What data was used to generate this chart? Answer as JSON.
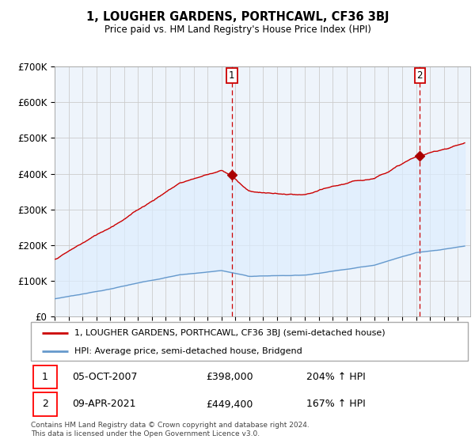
{
  "title": "1, LOUGHER GARDENS, PORTHCAWL, CF36 3BJ",
  "subtitle": "Price paid vs. HM Land Registry's House Price Index (HPI)",
  "legend_line1": "1, LOUGHER GARDENS, PORTHCAWL, CF36 3BJ (semi-detached house)",
  "legend_line2": "HPI: Average price, semi-detached house, Bridgend",
  "sale1_date": "05-OCT-2007",
  "sale1_price": "£398,000",
  "sale1_hpi": "204% ↑ HPI",
  "sale1_year": 2007.75,
  "sale1_value": 398000,
  "sale2_date": "09-APR-2021",
  "sale2_price": "£449,400",
  "sale2_hpi": "167% ↑ HPI",
  "sale2_year": 2021.27,
  "sale2_value": 449400,
  "ylim": [
    0,
    700000
  ],
  "yticks": [
    0,
    100000,
    200000,
    300000,
    400000,
    500000,
    600000,
    700000
  ],
  "ytick_labels": [
    "£0",
    "£100K",
    "£200K",
    "£300K",
    "£400K",
    "£500K",
    "£600K",
    "£700K"
  ],
  "red_line_color": "#cc0000",
  "blue_line_color": "#6699cc",
  "fill_color": "#ddeeff",
  "marker_color": "#aa0000",
  "dashed_line_color": "#cc0000",
  "footer": "Contains HM Land Registry data © Crown copyright and database right 2024.\nThis data is licensed under the Open Government Licence v3.0.",
  "background_color": "#ffffff",
  "chart_bg_color": "#eef4fb",
  "grid_color": "#cccccc"
}
